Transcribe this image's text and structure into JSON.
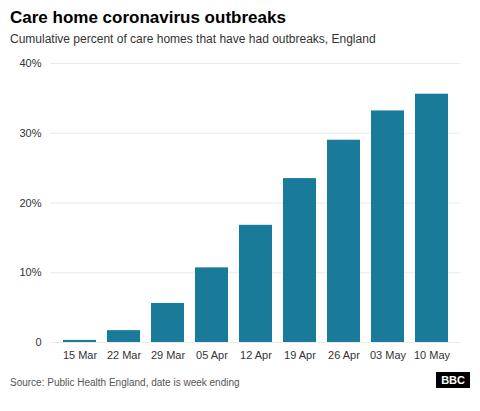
{
  "chart_data": {
    "type": "bar",
    "title": "Care home coronavirus outbreaks",
    "subtitle": "Cumulative percent of care homes that have had outbreaks, England",
    "categories": [
      "15 Mar",
      "22 Mar",
      "29 Mar",
      "05 Apr",
      "12 Apr",
      "19 Apr",
      "26 Apr",
      "03 May",
      "10 May"
    ],
    "values": [
      0.3,
      1.7,
      5.6,
      10.7,
      16.8,
      23.5,
      29.0,
      33.2,
      35.6
    ],
    "color": "#1a7a9a",
    "ylim": [
      0,
      40
    ],
    "yticks": [
      0,
      {
        "value": 10,
        "label": "10%"
      },
      {
        "value": 20,
        "label": "20%"
      },
      {
        "value": 30,
        "label": "30%"
      },
      {
        "value": 40,
        "label": "40%"
      }
    ],
    "grid": true,
    "source": "Source: Public Health England, date is week ending",
    "annotations": [
      "BBC"
    ]
  }
}
